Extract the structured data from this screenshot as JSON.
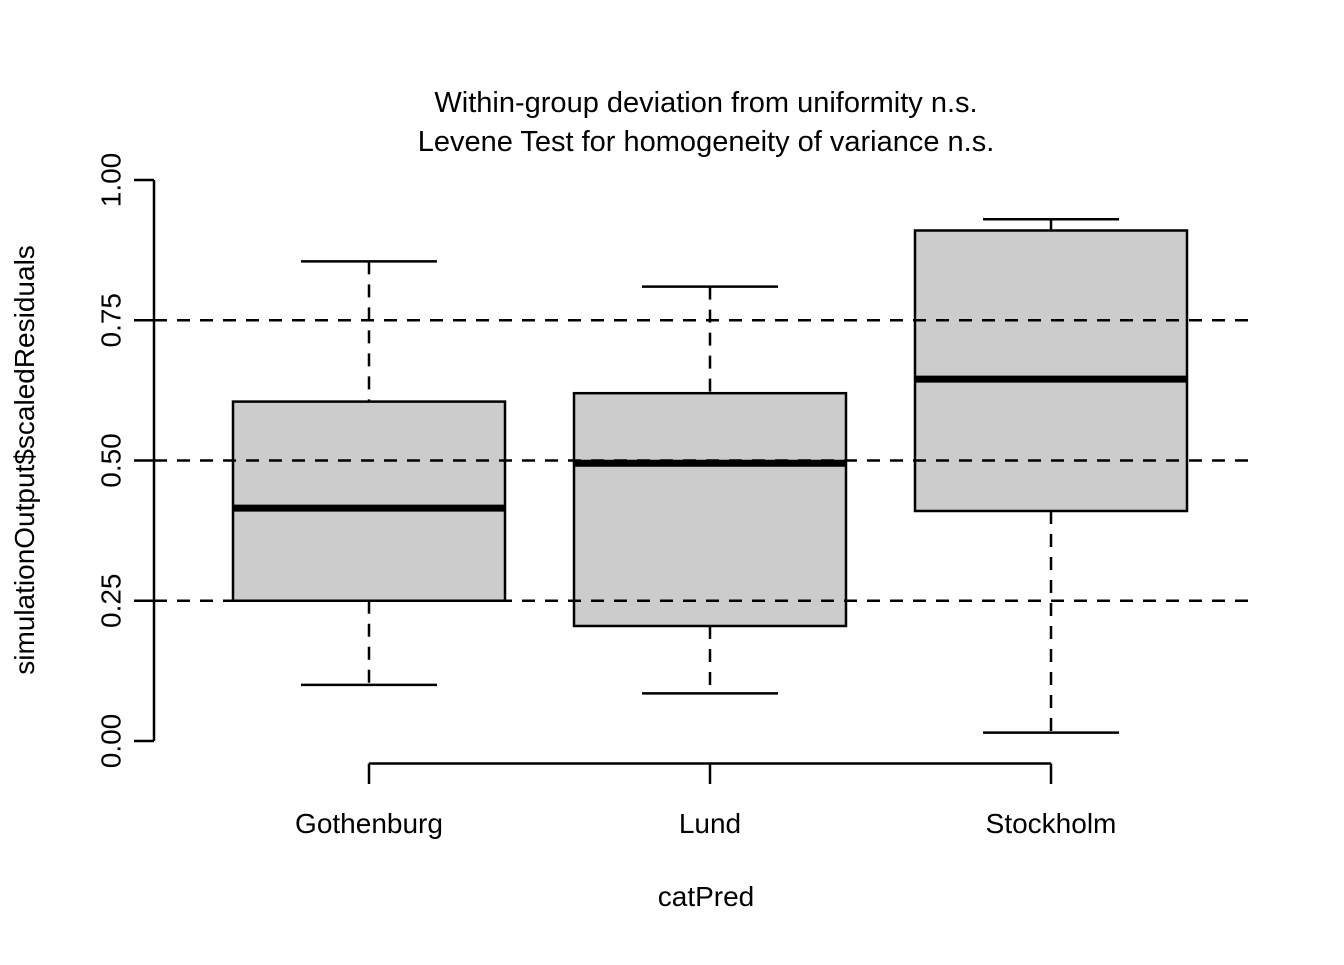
{
  "figure": {
    "title_line1": "Within-group deviation from uniformity n.s.",
    "title_line2": "Levene Test for homogeneity of variance n.s.",
    "x_label": "catPred",
    "y_label": "simulationOutput$scaledResiduals"
  },
  "chart_data": {
    "type": "boxplot",
    "title": "Within-group deviation from uniformity n.s.\nLevene Test for homogeneity of variance n.s.",
    "xlabel": "catPred",
    "ylabel": "simulationOutput$scaledResiduals",
    "categories": [
      "Gothenburg",
      "Lund",
      "Stockholm"
    ],
    "series": [
      {
        "name": "Gothenburg",
        "whisker_low": 0.1,
        "q1": 0.25,
        "median": 0.415,
        "q3": 0.605,
        "whisker_high": 0.855,
        "outliers": []
      },
      {
        "name": "Lund",
        "whisker_low": 0.085,
        "q1": 0.205,
        "median": 0.495,
        "q3": 0.62,
        "whisker_high": 0.81,
        "outliers": []
      },
      {
        "name": "Stockholm",
        "whisker_low": 0.015,
        "q1": 0.41,
        "median": 0.645,
        "q3": 0.91,
        "whisker_high": 0.93,
        "outliers": []
      }
    ],
    "ylim": [
      0.0,
      1.0
    ],
    "y_ticks": [
      0.0,
      0.25,
      0.5,
      0.75,
      1.0
    ],
    "y_tick_labels": [
      "0.00",
      "0.25",
      "0.50",
      "0.75",
      "1.00"
    ],
    "gridlines": {
      "values": [
        0.25,
        0.5,
        0.75
      ],
      "style": "dashed"
    },
    "legend": "none",
    "box_fill": "#cccccc",
    "stroke_color": "#000000",
    "background": "#ffffff"
  }
}
